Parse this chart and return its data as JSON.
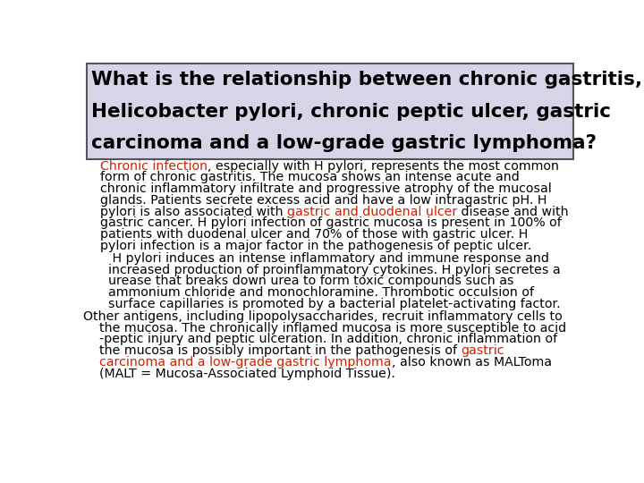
{
  "title_lines": [
    "What is the relationship between chronic gastritis,",
    "Helicobacter pylori, chronic peptic ulcer, gastric",
    "carcinoma and a low-grade gastric lymphoma?"
  ],
  "title_bg": "#d8d4e8",
  "title_border": "#555555",
  "title_fontsize": 15.5,
  "body_fontsize": 10.2,
  "bg_color": "#ffffff",
  "black": "#000000",
  "red": "#cc2200",
  "para1": [
    {
      "text": "Chronic infection",
      "color": "#cc2200"
    },
    {
      "text": ", especially with H pylori, represents the most common\nform of chronic gastritis. The mucosa shows an intense acute and\nchronic inflammatory infiltrate and progressive atrophy of the mucosal\nglands. Patients secrete excess acid and have a low intragastric pH. H\npylori is also associated with ",
      "color": "#000000"
    },
    {
      "text": "gastric and duodenal ulcer",
      "color": "#cc2200"
    },
    {
      "text": " disease and with\ngastric cancer. H pylori infection of gastric mucosa is present in 100% of\npatients with duodenal ulcer and 70% of those with gastric ulcer. H\npylori infection is a major factor in the pathogenesis of peptic ulcer.",
      "color": "#000000"
    }
  ],
  "para2": [
    {
      "text": " H pylori induces an intense inflammatory and immune response and\nincreased production of proinflammatory cytokines. H pylori secretes a\nurease that breaks down urea to form toxic compounds such as\nammonium chloride and monochloramine. Thrombotic occulsion of\nsurface capillaries is promoted by a bacterial platelet-activating factor.",
      "color": "#000000"
    }
  ],
  "para3": [
    {
      "text": "Other antigens, including lipopolysaccharides, recruit inflammatory cells to\n    the mucosa. The chronically inflamed mucosa is more susceptible to acid\n    -peptic injury and peptic ulceration. In addition, chronic inflammation of\n    the mucosa is possibly important in the pathogenesis of ",
      "color": "#000000"
    },
    {
      "text": "gastric\n    carcinoma and a low-grade gastric lymphoma",
      "color": "#cc2200"
    },
    {
      "text": ", also known as MALToma\n    (MALT = Mucosa-Associated Lymphoid Tissue).",
      "color": "#000000"
    }
  ]
}
